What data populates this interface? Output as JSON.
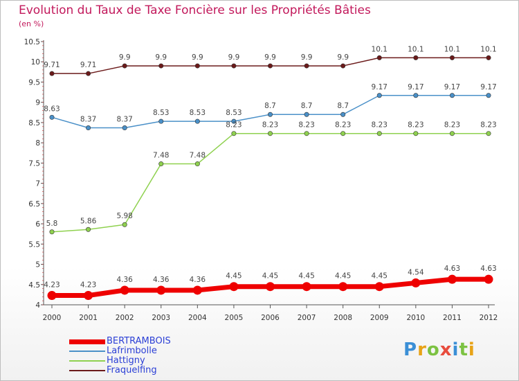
{
  "title": "Evolution du Taux de Taxe Foncière sur les Propriétés Bâties",
  "unit": "(en %)",
  "logo_text": "Proxiti",
  "chart_data": {
    "type": "line",
    "categories": [
      "2000",
      "2001",
      "2002",
      "2003",
      "2004",
      "2005",
      "2006",
      "2007",
      "2008",
      "2009",
      "2010",
      "2011",
      "2012"
    ],
    "ylim": [
      4,
      10.5
    ],
    "yticks": [
      "4",
      "4.5",
      "5",
      "5.5",
      "6",
      "6.5",
      "7",
      "7.5",
      "8",
      "8.5",
      "9",
      "9.5",
      "10",
      "10.5"
    ],
    "grid": false,
    "legend_position": "bottom-left",
    "series": [
      {
        "name": "Fraquelfing",
        "color": "#6b1a1a",
        "values": [
          9.71,
          9.71,
          9.9,
          9.9,
          9.9,
          9.9,
          9.9,
          9.9,
          9.9,
          10.1,
          10.1,
          10.1,
          10.1
        ],
        "labels": [
          "9.71",
          "9.71",
          "9.9",
          "9.9",
          "9.9",
          "9.9",
          "9.9",
          "9.9",
          "9.9",
          "10.1",
          "10.1",
          "10.1",
          "10.1"
        ]
      },
      {
        "name": "Lafrimbolle",
        "color": "#4a90c8",
        "values": [
          8.63,
          8.37,
          8.37,
          8.53,
          8.53,
          8.53,
          8.7,
          8.7,
          8.7,
          9.17,
          9.17,
          9.17,
          9.17
        ],
        "labels": [
          "8.63",
          "8.37",
          "8.37",
          "8.53",
          "8.53",
          "8.53",
          "8.7",
          "8.7",
          "8.7",
          "9.17",
          "9.17",
          "9.17",
          "9.17"
        ]
      },
      {
        "name": "Hattigny",
        "color": "#8fd14f",
        "values": [
          5.8,
          5.86,
          5.98,
          7.48,
          7.48,
          8.23,
          8.23,
          8.23,
          8.23,
          8.23,
          8.23,
          8.23,
          8.23
        ],
        "labels": [
          "5.8",
          "5.86",
          "5.98",
          "7.48",
          "7.48",
          "8.23",
          "8.23",
          "8.23",
          "8.23",
          "8.23",
          "8.23",
          "8.23",
          "8.23"
        ]
      },
      {
        "name": "BERTRAMBOIS",
        "color": "#ee0000",
        "values": [
          4.23,
          4.23,
          4.36,
          4.36,
          4.36,
          4.45,
          4.45,
          4.45,
          4.45,
          4.45,
          4.54,
          4.63,
          4.63
        ],
        "labels": [
          "4.23",
          "4.23",
          "4.36",
          "4.36",
          "4.36",
          "4.45",
          "4.45",
          "4.45",
          "4.45",
          "4.45",
          "4.54",
          "4.63",
          "4.63"
        ]
      }
    ],
    "legend_order": [
      "BERTRAMBOIS",
      "Lafrimbolle",
      "Hattigny",
      "Fraquelfing"
    ]
  }
}
